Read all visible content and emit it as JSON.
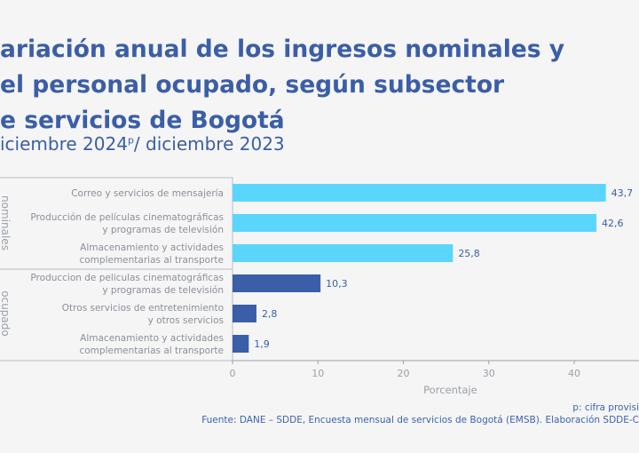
{
  "title_lines": [
    "ariación anual de los ingresos nominales y",
    "el personal ocupado, según subsector",
    "e servicios de Bogotá"
  ],
  "subtitle": {
    "main": "iciembre 2024",
    "sup": "p",
    "rest": "/ diciembre 2023"
  },
  "chart_data": {
    "type": "bar",
    "orientation": "horizontal",
    "groups": [
      {
        "name": "nominales",
        "color": "#5ad6fd",
        "categories": [
          "Correo y servicios de mensajería",
          "Producción de películas cinematográficas\ny programas de televisión",
          "Almacenamiento y actividades\ncomplementarias al transporte"
        ],
        "values": [
          43.7,
          42.6,
          25.8
        ],
        "labels": [
          "43,7",
          "42,6",
          "25,8"
        ]
      },
      {
        "name": "ocupado",
        "color": "#3a5ea8",
        "categories": [
          "Produccion de peliculas cinematográficas\ny programas de televisión",
          "Otros servicios de entretenimiento\ny otros servicios",
          "Almacenamiento y actividades\ncomplementarias al transporte"
        ],
        "values": [
          10.3,
          2.8,
          1.9
        ],
        "labels": [
          "10,3",
          "2,8",
          "1,9"
        ]
      }
    ],
    "xlabel": "Porcentaje",
    "xticks": [
      "0",
      "10",
      "20",
      "30",
      "40"
    ],
    "xlim": [
      0,
      47
    ],
    "grid": false
  },
  "footnotes": {
    "note": "p: cifra provisi",
    "source": "Fuente: DANE – SDDE, Encuesta mensual de servicios de Bogotá (EMSB). Elaboración SDDE-C"
  }
}
